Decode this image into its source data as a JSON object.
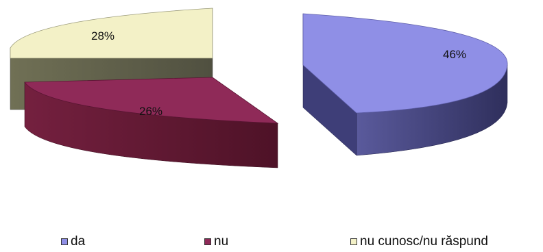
{
  "chart_data": {
    "type": "pie",
    "style": "3d-exploded",
    "categories": [
      "da",
      "nu",
      "nu cunosc/nu răspund"
    ],
    "values": [
      46,
      26,
      28
    ],
    "labels": [
      "46%",
      "26%",
      "28%"
    ],
    "colors": [
      "#8f8fe6",
      "#8f2a58",
      "#f3f1c7"
    ],
    "legend_position": "bottom",
    "title": ""
  }
}
